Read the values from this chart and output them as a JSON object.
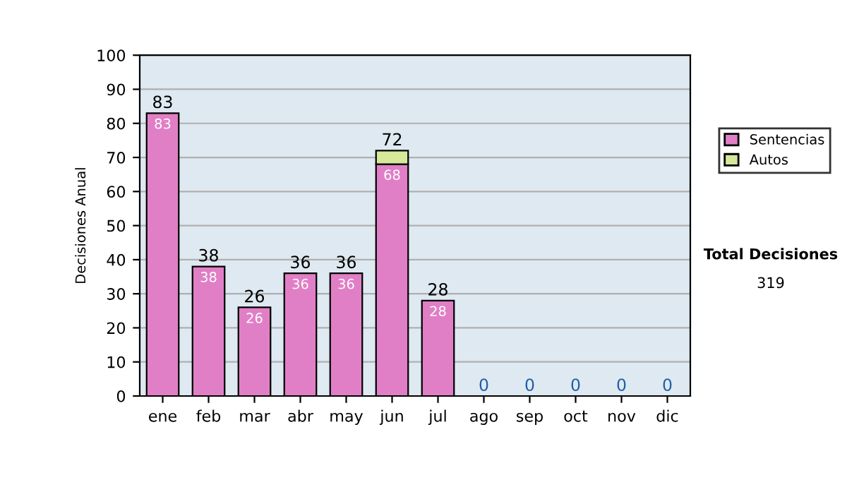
{
  "chart_data": {
    "type": "bar",
    "stacked": true,
    "ylabel": "Decisiones Anual",
    "categories": [
      "ene",
      "feb",
      "mar",
      "abr",
      "may",
      "jun",
      "jul",
      "ago",
      "sep",
      "oct",
      "nov",
      "dic"
    ],
    "series": [
      {
        "name": "Sentencias",
        "color": "#e07fc6",
        "values": [
          83,
          38,
          26,
          36,
          36,
          68,
          28,
          0,
          0,
          0,
          0,
          0
        ],
        "value_labels": [
          "83",
          "38",
          "26",
          "36",
          "36",
          "68",
          "28",
          null,
          null,
          null,
          null,
          null
        ]
      },
      {
        "name": "Autos",
        "color": "#d6e89a",
        "values": [
          0,
          0,
          0,
          0,
          0,
          4,
          0,
          0,
          0,
          0,
          0,
          0
        ]
      }
    ],
    "totals": [
      "83",
      "38",
      "26",
      "36",
      "36",
      "72",
      "28",
      "0",
      "0",
      "0",
      "0",
      "0"
    ],
    "ylim": [
      0,
      100
    ],
    "yticks": [
      0,
      10,
      20,
      30,
      40,
      50,
      60,
      70,
      80,
      90,
      100
    ],
    "grid": "y",
    "legend": "right",
    "annotations": [
      "Total Decisiones",
      "319"
    ]
  }
}
